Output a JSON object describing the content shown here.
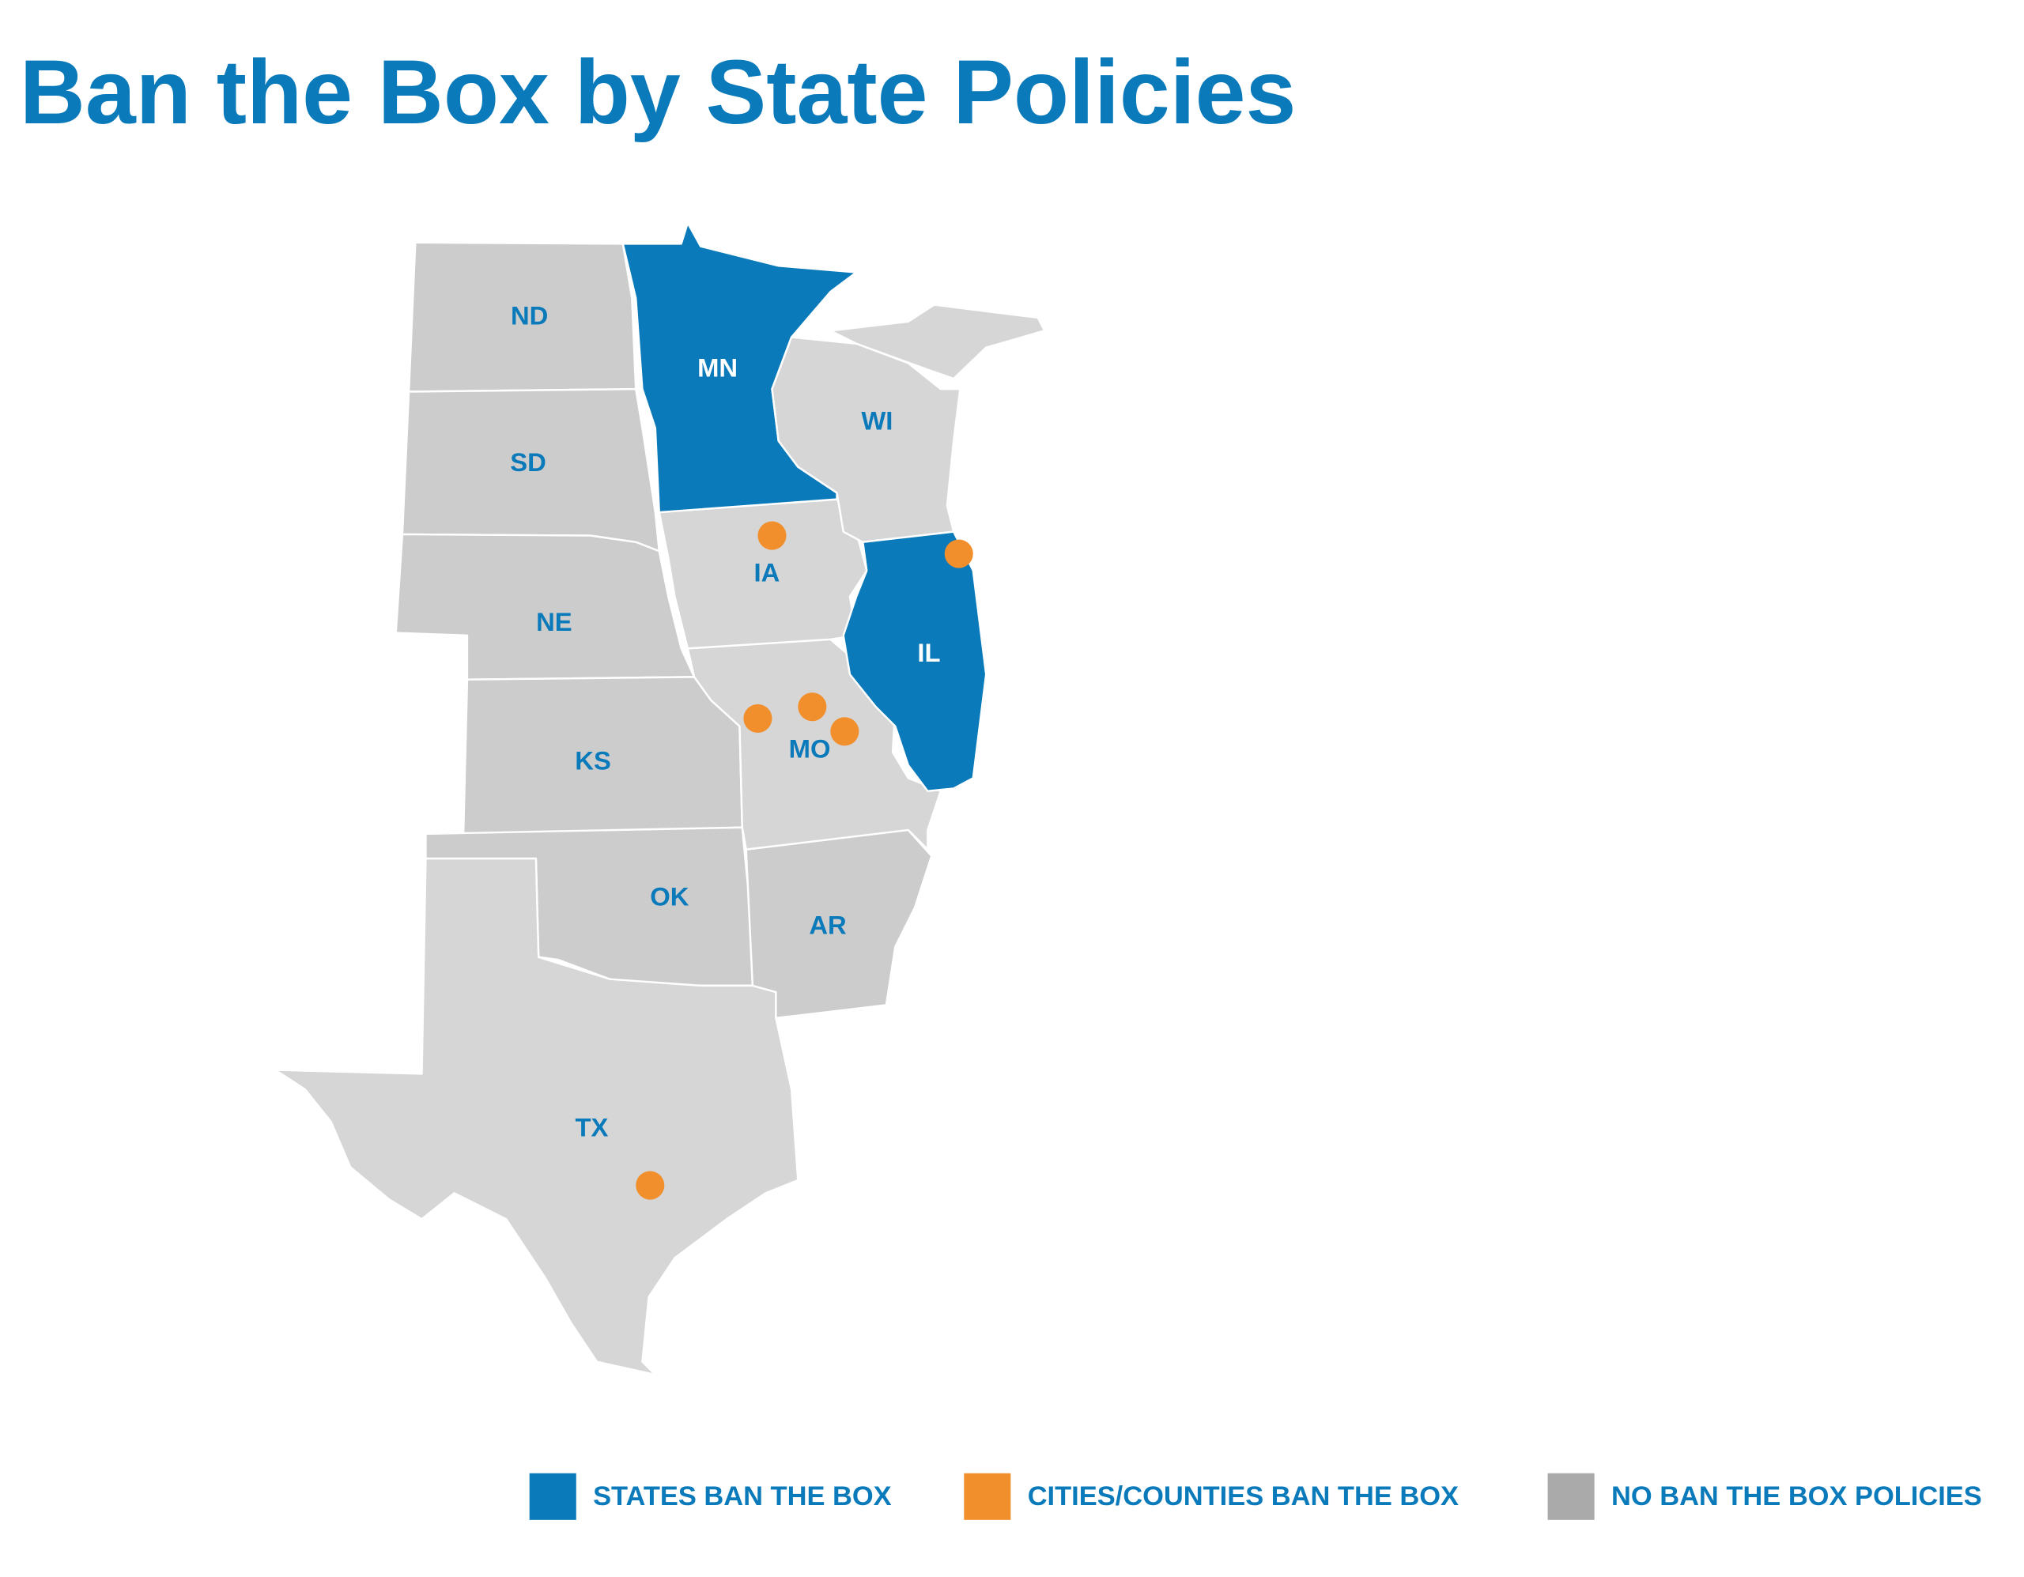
{
  "title": "Ban the Box by State Policies",
  "map": {
    "states": [
      "ND",
      "MN",
      "SD",
      "WI",
      "IA",
      "NE",
      "IL",
      "KS",
      "MO",
      "OK",
      "AR",
      "TX"
    ]
  },
  "legend": {
    "items": [
      "STATES BAN THE BOX",
      "CITIES/COUNTIES BAN THE BOX",
      "NO BAN THE BOX POLICIES"
    ]
  }
}
